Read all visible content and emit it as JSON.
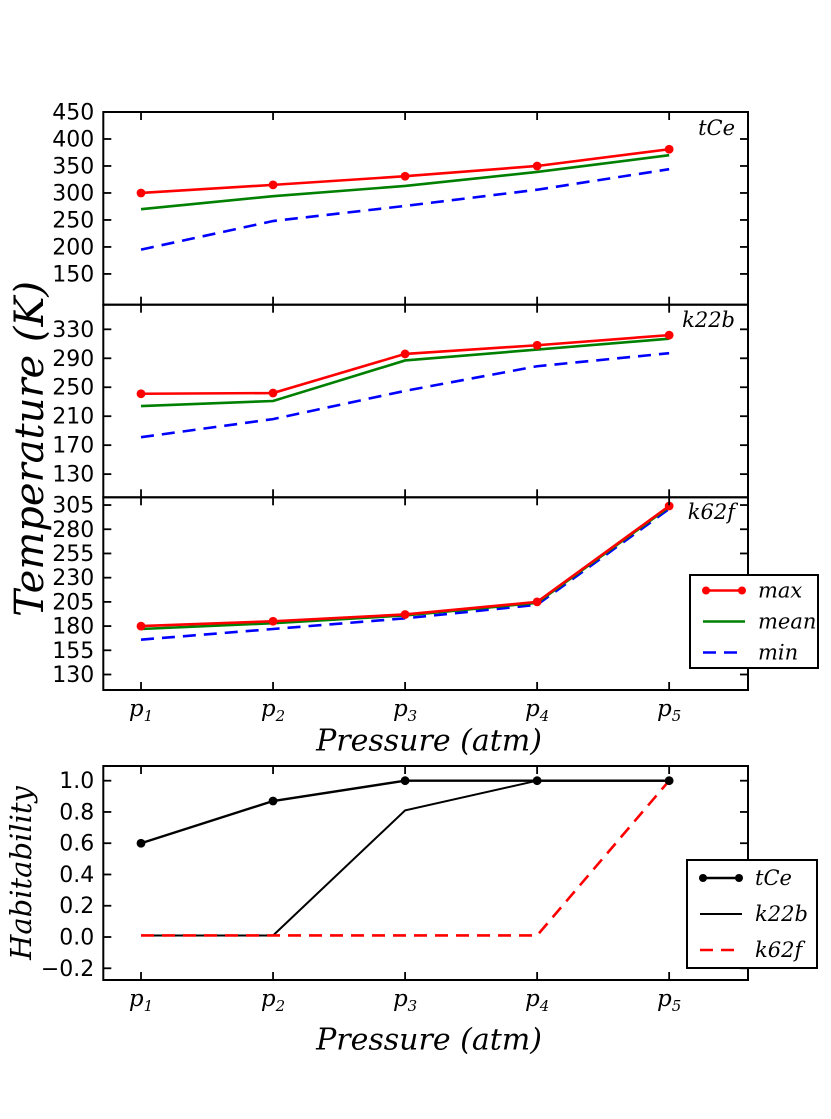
{
  "figure": {
    "background": "#ffffff",
    "frame_color": "#000000",
    "text_color": "#000000"
  },
  "shared": {
    "xlabel": "Pressure (atm)",
    "ylabel_temperature": "Temperature (K)",
    "ylabel_habitability": "Habitability",
    "x_categories": [
      "p1",
      "p2",
      "p3",
      "p4",
      "p5"
    ],
    "x_ticks": [
      {
        "base": "p",
        "sub": "1"
      },
      {
        "base": "p",
        "sub": "2"
      },
      {
        "base": "p",
        "sub": "3"
      },
      {
        "base": "p",
        "sub": "4"
      },
      {
        "base": "p",
        "sub": "5"
      }
    ]
  },
  "chart_data": [
    {
      "type": "line",
      "panel": "tCe",
      "annotation": "tCe",
      "ylim": [
        93,
        450
      ],
      "yticks": [
        150,
        200,
        250,
        300,
        350,
        400,
        450
      ],
      "grid": false,
      "show_x_tick_labels": false,
      "draw_order": [
        2,
        1,
        0
      ],
      "series": [
        {
          "name": "max",
          "color": "#ff0000",
          "style": "solid",
          "marker": "circle",
          "width": 2.6,
          "values": [
            300,
            315,
            331,
            350,
            381
          ]
        },
        {
          "name": "mean",
          "color": "#008000",
          "style": "solid",
          "marker": "none",
          "width": 2.6,
          "values": [
            270,
            294,
            313,
            339,
            370
          ]
        },
        {
          "name": "min",
          "color": "#0000ff",
          "style": "dashed",
          "marker": "none",
          "width": 2.6,
          "values": [
            195,
            248,
            276,
            306,
            344
          ]
        }
      ]
    },
    {
      "type": "line",
      "panel": "k22b",
      "annotation": "k22b",
      "ylim": [
        98,
        364
      ],
      "yticks": [
        130,
        170,
        210,
        250,
        290,
        330
      ],
      "grid": false,
      "show_x_tick_labels": false,
      "draw_order": [
        2,
        1,
        0
      ],
      "series": [
        {
          "name": "max",
          "color": "#ff0000",
          "style": "solid",
          "marker": "circle",
          "width": 2.6,
          "values": [
            241,
            242,
            296,
            308,
            322
          ]
        },
        {
          "name": "mean",
          "color": "#008000",
          "style": "solid",
          "marker": "none",
          "width": 2.6,
          "values": [
            224,
            231,
            287,
            302,
            317
          ]
        },
        {
          "name": "min",
          "color": "#0000ff",
          "style": "dashed",
          "marker": "none",
          "width": 2.6,
          "values": [
            181,
            206,
            245,
            279,
            297
          ]
        }
      ]
    },
    {
      "type": "line",
      "panel": "k62f",
      "annotation": "k62f",
      "ylim": [
        114,
        313
      ],
      "yticks": [
        130,
        155,
        180,
        205,
        230,
        255,
        280,
        305
      ],
      "grid": false,
      "show_x_tick_labels": true,
      "draw_order": [
        2,
        1,
        0
      ],
      "legend": {
        "entries": [
          "max",
          "mean",
          "min"
        ],
        "position": "lower-right-overlap"
      },
      "series": [
        {
          "name": "max",
          "color": "#ff0000",
          "style": "solid",
          "marker": "circle",
          "width": 2.6,
          "values": [
            180,
            185,
            192,
            205,
            304
          ]
        },
        {
          "name": "mean",
          "color": "#008000",
          "style": "solid",
          "marker": "none",
          "width": 2.6,
          "values": [
            177,
            183,
            191,
            204,
            303
          ]
        },
        {
          "name": "min",
          "color": "#0000ff",
          "style": "dashed",
          "marker": "none",
          "width": 2.6,
          "values": [
            166,
            177,
            188,
            202,
            301
          ]
        }
      ]
    },
    {
      "type": "line",
      "panel": "habitability",
      "annotation": "",
      "ylim": [
        -0.275,
        1.094
      ],
      "yticks": [
        -0.2,
        0.0,
        0.2,
        0.4,
        0.6,
        0.8,
        1.0
      ],
      "ytick_labels": [
        "−0.2",
        "0.0",
        "0.2",
        "0.4",
        "0.6",
        "0.8",
        "1.0"
      ],
      "grid": false,
      "show_x_tick_labels": true,
      "draw_order": [
        1,
        2,
        0
      ],
      "legend": {
        "entries": [
          "tCe",
          "k22b",
          "k62f"
        ],
        "position": "right-overlap"
      },
      "series": [
        {
          "name": "tCe",
          "color": "#000000",
          "style": "solid",
          "marker": "circle",
          "width": 2.4,
          "values": [
            0.6,
            0.87,
            1.0,
            1.0,
            1.0
          ]
        },
        {
          "name": "k22b",
          "color": "#000000",
          "style": "solid",
          "marker": "none",
          "width": 2.0,
          "values": [
            0.01,
            0.01,
            0.81,
            1.0,
            1.0
          ]
        },
        {
          "name": "k62f",
          "color": "#ff0000",
          "style": "dashed",
          "marker": "none",
          "width": 2.6,
          "values": [
            0.01,
            0.01,
            0.01,
            0.01,
            1.0
          ]
        }
      ]
    }
  ]
}
